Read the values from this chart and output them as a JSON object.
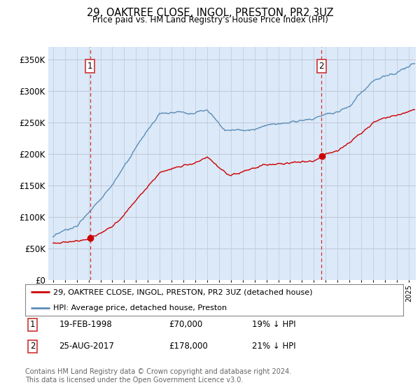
{
  "title": "29, OAKTREE CLOSE, INGOL, PRESTON, PR2 3UZ",
  "subtitle": "Price paid vs. HM Land Registry's House Price Index (HPI)",
  "plot_bg_color": "#dce9f8",
  "ylim": [
    0,
    370000
  ],
  "yticks": [
    0,
    50000,
    100000,
    150000,
    200000,
    250000,
    300000,
    350000
  ],
  "ytick_labels": [
    "£0",
    "£50K",
    "£100K",
    "£150K",
    "£200K",
    "£250K",
    "£300K",
    "£350K"
  ],
  "sale1": {
    "date_num": 1998.13,
    "price": 70000,
    "label": "1",
    "date_str": "19-FEB-1998",
    "pct": "19% ↓ HPI"
  },
  "sale2": {
    "date_num": 2017.65,
    "price": 178000,
    "label": "2",
    "date_str": "25-AUG-2017",
    "pct": "21% ↓ HPI"
  },
  "legend_line1": "29, OAKTREE CLOSE, INGOL, PRESTON, PR2 3UZ (detached house)",
  "legend_line2": "HPI: Average price, detached house, Preston",
  "footer1": "Contains HM Land Registry data © Crown copyright and database right 2024.",
  "footer2": "This data is licensed under the Open Government Licence v3.0.",
  "red_color": "#cc0000",
  "blue_color": "#5b8db8",
  "grid_color": "#c0c8d8",
  "vline_color": "#cc3333",
  "xmin": 1994.6,
  "xmax": 2025.6
}
